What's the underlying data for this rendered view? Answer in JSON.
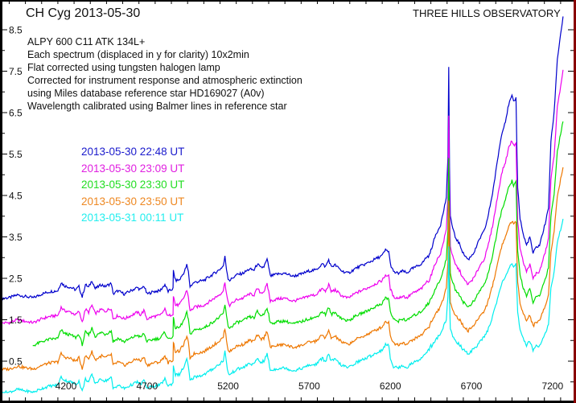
{
  "chart_data": {
    "type": "line",
    "title": "CH Cyg   2013-05-30",
    "subtitle": "THREE HILLS OBSERVATORY",
    "annotations": [
      "ALPY 600  C11 ATK 134L+",
      "Each spectrum (displaced in y for clarity)  10x2min",
      "Flat corrected using tungsten halogen lamp",
      "Corrected for instrument response and atmospheric extinction",
      "using Miles database reference star HD169027 (A0v)",
      "Wavelength calibrated using Balmer lines in reference star"
    ],
    "xlabel": "",
    "ylabel": "",
    "xlim": [
      3800,
      7340
    ],
    "ylim": [
      0,
      9.0
    ],
    "x_ticks": [
      4200,
      4700,
      5200,
      5700,
      6200,
      6700,
      7200
    ],
    "y_ticks": [
      0.5,
      1.5,
      2.5,
      3.5,
      4.5,
      5.5,
      6.5,
      7.5,
      8.5
    ],
    "grid": false,
    "legend_position": "upper-left (inside plot)",
    "series": [
      {
        "name": "2013-05-30  22:48 UT",
        "color": "#0000cc",
        "start": 3800,
        "points": [
          [
            3800,
            2.02
          ],
          [
            3850,
            2.03
          ],
          [
            3900,
            2.1
          ],
          [
            3950,
            2.06
          ],
          [
            4000,
            2.03
          ],
          [
            4050,
            2.12
          ],
          [
            4100,
            2.18
          ],
          [
            4150,
            2.2
          ],
          [
            4170,
            2.4
          ],
          [
            4190,
            2.32
          ],
          [
            4230,
            2.28
          ],
          [
            4260,
            2.22
          ],
          [
            4280,
            2.3
          ],
          [
            4300,
            2.05
          ],
          [
            4320,
            2.35
          ],
          [
            4340,
            2.28
          ],
          [
            4360,
            2.45
          ],
          [
            4380,
            2.25
          ],
          [
            4420,
            2.35
          ],
          [
            4440,
            2.3
          ],
          [
            4480,
            2.38
          ],
          [
            4490,
            2.12
          ],
          [
            4520,
            2.2
          ],
          [
            4560,
            2.12
          ],
          [
            4600,
            2.2
          ],
          [
            4640,
            2.28
          ],
          [
            4660,
            2.22
          ],
          [
            4680,
            2.32
          ],
          [
            4700,
            2.12
          ],
          [
            4740,
            2.18
          ],
          [
            4780,
            2.2
          ],
          [
            4810,
            2.35
          ],
          [
            4830,
            2.18
          ],
          [
            4860,
            2.25
          ],
          [
            4862,
            2.68
          ],
          [
            4875,
            2.45
          ],
          [
            4900,
            2.46
          ],
          [
            4930,
            2.66
          ],
          [
            4945,
            2.82
          ],
          [
            4955,
            2.65
          ],
          [
            4965,
            2.3
          ],
          [
            4990,
            2.4
          ],
          [
            5050,
            2.45
          ],
          [
            5100,
            2.58
          ],
          [
            5150,
            2.72
          ],
          [
            5170,
            2.8
          ],
          [
            5180,
            3.02
          ],
          [
            5190,
            2.72
          ],
          [
            5200,
            2.5
          ],
          [
            5210,
            2.45
          ],
          [
            5250,
            2.58
          ],
          [
            5290,
            2.62
          ],
          [
            5330,
            2.72
          ],
          [
            5360,
            2.7
          ],
          [
            5380,
            2.85
          ],
          [
            5400,
            2.75
          ],
          [
            5420,
            2.78
          ],
          [
            5440,
            2.95
          ],
          [
            5450,
            2.78
          ],
          [
            5460,
            2.55
          ],
          [
            5500,
            2.6
          ],
          [
            5550,
            2.62
          ],
          [
            5600,
            2.55
          ],
          [
            5650,
            2.6
          ],
          [
            5700,
            2.68
          ],
          [
            5740,
            2.7
          ],
          [
            5780,
            2.85
          ],
          [
            5800,
            2.78
          ],
          [
            5820,
            2.95
          ],
          [
            5835,
            2.78
          ],
          [
            5860,
            2.82
          ],
          [
            5900,
            2.68
          ],
          [
            5940,
            2.62
          ],
          [
            5990,
            2.75
          ],
          [
            6050,
            2.85
          ],
          [
            6100,
            2.95
          ],
          [
            6150,
            3.05
          ],
          [
            6170,
            3.18
          ],
          [
            6190,
            3.15
          ],
          [
            6200,
            2.85
          ],
          [
            6220,
            2.65
          ],
          [
            6250,
            2.62
          ],
          [
            6280,
            2.68
          ],
          [
            6300,
            2.62
          ],
          [
            6330,
            2.72
          ],
          [
            6370,
            2.8
          ],
          [
            6400,
            2.88
          ],
          [
            6420,
            3.0
          ],
          [
            6440,
            3.05
          ],
          [
            6480,
            3.55
          ],
          [
            6510,
            3.8
          ],
          [
            6530,
            4.15
          ],
          [
            6545,
            4.45
          ],
          [
            6555,
            5.4
          ],
          [
            6560,
            7.6
          ],
          [
            6565,
            5.2
          ],
          [
            6570,
            4.0
          ],
          [
            6585,
            3.7
          ],
          [
            6600,
            3.5
          ],
          [
            6630,
            3.3
          ],
          [
            6650,
            3.1
          ],
          [
            6680,
            2.95
          ],
          [
            6700,
            3.05
          ],
          [
            6720,
            3.15
          ],
          [
            6750,
            3.45
          ],
          [
            6780,
            3.65
          ],
          [
            6800,
            3.95
          ],
          [
            6830,
            4.55
          ],
          [
            6850,
            5.05
          ],
          [
            6870,
            5.6
          ],
          [
            6890,
            6.05
          ],
          [
            6910,
            6.3
          ],
          [
            6930,
            6.7
          ],
          [
            6950,
            6.9
          ],
          [
            6960,
            6.75
          ],
          [
            6975,
            6.85
          ],
          [
            6985,
            4.7
          ],
          [
            7000,
            3.95
          ],
          [
            7020,
            3.55
          ],
          [
            7040,
            3.3
          ],
          [
            7060,
            3.5
          ],
          [
            7080,
            3.1
          ],
          [
            7100,
            3.25
          ],
          [
            7120,
            3.3
          ],
          [
            7140,
            3.6
          ],
          [
            7160,
            3.9
          ],
          [
            7175,
            4.2
          ],
          [
            7190,
            5.8
          ],
          [
            7210,
            6.5
          ],
          [
            7230,
            7.8
          ],
          [
            7250,
            8.4
          ],
          [
            7265,
            8.8
          ]
        ]
      },
      {
        "name": "2013-05-30  23:09 UT",
        "color": "#ee00ee",
        "start": 3800,
        "offset": -0.6,
        "red_scale": 0.88
      },
      {
        "name": "2013-05-30  23:30 UT",
        "color": "#00dd00",
        "start": 3995,
        "offset": -1.15,
        "red_scale": 0.77
      },
      {
        "name": "2013-05-30  23:50 UT",
        "color": "#ee7700",
        "start": 3800,
        "offset": -1.72,
        "red_scale": 0.67
      },
      {
        "name": "2013-05-31  00:11 UT",
        "color": "#00eeee",
        "start": 3800,
        "offset": -2.28,
        "red_scale": 0.55
      }
    ]
  },
  "header": {
    "title": "CH Cyg   2013-05-30",
    "observatory": "THREE HILLS OBSERVATORY"
  },
  "notes": [
    "ALPY 600  C11 ATK 134L+",
    "Each spectrum (displaced in y for clarity)  10x2min",
    "Flat corrected using tungsten halogen lamp",
    "Corrected for instrument response and atmospheric extinction",
    "using Miles database reference star HD169027 (A0v)",
    "Wavelength calibrated using Balmer lines in reference star"
  ],
  "legend": [
    {
      "label": "2013-05-30  22:48 UT",
      "color": "#1a1acc"
    },
    {
      "label": "2013-05-30  23:09 UT",
      "color": "#e020e0"
    },
    {
      "label": "2013-05-30  23:30 UT",
      "color": "#22dd22"
    },
    {
      "label": "2013-05-30  23:50 UT",
      "color": "#ee8822"
    },
    {
      "label": "2013-05-31  00:11 UT",
      "color": "#22eeee"
    }
  ],
  "axes": {
    "left_axis_color": "#000000",
    "right_axis_color": "#880000"
  }
}
